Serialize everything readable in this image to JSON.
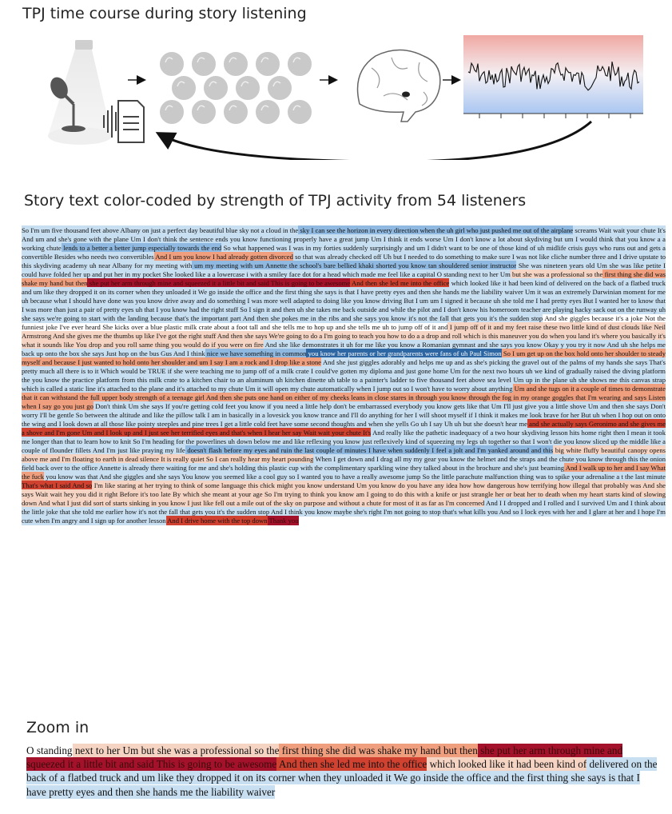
{
  "titles": {
    "pipeline": "TPJ time course during story listening",
    "story": "Story text color-coded by strength of TPJ activity from 54 listeners",
    "zoom": "Zoom in"
  },
  "colors": {
    "strong_negative": "#2c66a3",
    "negative": "#8fb9e0",
    "weak_negative": "#c8dff1",
    "neutral": "#ffffff",
    "weak_positive": "#f6d4c3",
    "positive": "#ef9e7e",
    "strong_positive": "#d0412f",
    "peak_positive": "#a3122a",
    "timecourse_line": "#111111"
  },
  "pipeline_icons": [
    "spotlight-icon",
    "microphone-icon",
    "audio-document-icon",
    "audience-icon",
    "brain-icon",
    "timecourse-plot-icon",
    "feedback-arrow-icon"
  ],
  "story_segments": [
    {
      "t": "So I'm um five thousand feet above Albany on just a perfect day beautiful blue sky not a cloud in the",
      "s": -1
    },
    {
      "t": " sky I can see the horizon in every direction when the uh girl who just pushed me out of the airplane",
      "s": -2
    },
    {
      "t": " screams Wait wait your chute It's And um and she's gone with the plane Um I don't think the sentence ends you know functioning properly have a great jump Um I think it ends worse Um I don't know a lot about skydiving but um I would think that you know a a working chute",
      "s": -1
    },
    {
      "t": " lends to a better a better jump especially towards the end",
      "s": -2
    },
    {
      "t": " So what happened was I was in my forties suddenly surprisingly and um I didn't want to be one of those kind of uh midlife crisis guys who runs out and gets a convertible Besides who needs two convertibles",
      "s": -1
    },
    {
      "t": " And I um you know I had already gotten divorced",
      "s": 2
    },
    {
      "t": " so that was already checked off Uh but I needed to do something to make sure I was not like cliche number three and I drive upstate to this skydiving academy uh near Albany for my meeting with",
      "s": -1
    },
    {
      "t": " um my meeting with um Annette the school's bare bellied khaki shorted you know tan shouldered senior instructor",
      "s": -2
    },
    {
      "t": " She was nineteen years old Um she was like petite I could have folded her up and put her in my pocket She looked like a a lowercase i with a smiley face dot for a head which made me feel like a capital O standing next to her Um",
      "s": -1
    },
    {
      "t": " but she was a professional so the",
      "s": 1
    },
    {
      "t": " first thing she did was shake my hand but then",
      "s": 2
    },
    {
      "t": " she put her arm through mine and squeezed it a little bit and said This is going to be awesome",
      "s": 4
    },
    {
      "t": " And then she led me into the office",
      "s": 3
    },
    {
      "t": " which looked like it had been kind of delivered on the back of a flatbed truck and um like they dropped it on its corner when they unloaded it We go inside the office and the first thing she says is that I have pretty eyes and then she hands me the liability waiver",
      "s": -1
    },
    {
      "t": " Um it was an extremely Darwinian moment for me uh because what I should have done was you know drive away and do something I was more well adapted to doing like you know driving But I um um I signed it because uh she told me I had pretty eyes But I wanted her to know that I was more than just a pair of pretty eyes uh that I you know had the right stuff So I sign it and then uh she takes me back outside and while the pilot and I don't know his homeroom teacher are playing hacky sack out on the runway uh she says we're going to start with the landing because that's the important part And then she pokes me in the ribs and she says you know it's not the fall that gets you it's the sudden stop",
      "s": -1
    },
    {
      "t": " And she giggles because it's a joke Not the funniest joke I've ever heard She kicks over a blue plastic milk crate about a foot tall and she tells me to hop up and she tells me uh to jump off of it and",
      "s": 0
    },
    {
      "t": " I jump off of it and my feet raise these two little kind of dust clouds like Neil Armstrong And she gives me the thumbs up like I've got the right stuff And then she says We're going to do a I'm going to teach you how to do a a drop and roll which is this maneuver you do when you land it's where you basically it's what it sounds like You drop and you roll same thing you would do if you were on fire",
      "s": 1
    },
    {
      "t": " And she like demonstrates it uh for me like you know a Romanian gymnast and she says you know Okay y you try it now And uh she helps me back up onto the box she says Just hop on the bus Gus And I think",
      "s": -1
    },
    {
      "t": " nice we have something in common",
      "s": -2
    },
    {
      "t": " you know her parents or her grandparents were fans of uh Paul Simon",
      "s": -3
    },
    {
      "t": " So I um get up on the box hold onto her shoulder to steady myself and because I just wanted to hold onto her shoulder and um I say I am a rock and I drop like a stone",
      "s": 2
    },
    {
      "t": " And she just giggles adorably and helps me up and as she's picking the gravel out of the palms of my hands she says That's pretty much all there is to it Which would be TRUE if she were teaching me to jump off of a milk crate I could've gotten my diploma and just gone home Um for the next two hours uh we kind of gradually raised the diving platform the you know the practice platform from this milk crate to a kitchen chair to an aluminum uh kitchen dinette uh table to a painter's ladder to five thousand feet above sea level Um up in the plane uh she shows me this canvas strap which is called a static line it's attached to the plane and it's attached to my chute Um it will open my chute automatically when I jump out so I won't have to worry about anything",
      "s": -1
    },
    {
      "t": " Um and she tugs on it a couple of times to demonstrate that it can withstand the full upper body strength of a teenage girl And then she puts one hand on either of my cheeks leans in close stares in through you know through the fog in my orange goggles that I'm wearing and says Listen when I say go you just go",
      "s": 2
    },
    {
      "t": " Don't think Um she says If you're getting cold feet you know if you need a little help don't be embarrassed everybody you know gets like that Um I'll just give you a little shove Um and then she says Don't worry I'll be gentle So between the altitude and like the pillow talk I am in basically in a lovesick you know trance and I'll do anything for her I will shoot myself if I think it makes me look brave for her But uh when I hop out on onto the wing and I look down at all those like pointy steeples and pine trees I get a little cold feet have some second thoughts and when she yells Go uh I say Uh uh but she doesn't hear me",
      "s": -1
    },
    {
      "t": " and she actually says Geronimo and she gives me a shove and I'm gone Um and I look up and I just see her terrified eyes and that's when I hear her say Wait wait your chute It's",
      "s": 3
    },
    {
      "t": " And really like the pathetic inadequacy of a two hour skydiving lesson hits home right then I mean it took me longer than that to learn how to knit So I'm heading for the powerlines uh down below me and like reflexing you know just reflexively kind of squeezing my legs uh together so that I won't die you know sliced up the middle like a couple of flounder fillets And I'm just like praying my life",
      "s": -1
    },
    {
      "t": " doesn't flash before my eyes and ruin the last couple of minutes I have when suddenly I feel a jolt and I'm yanked around and this",
      "s": -2
    },
    {
      "t": " big white fluffy beautiful canopy opens above me and I'm floating to earth in dead silence It is really quiet So I can really hear my heart pounding",
      "s": 1
    },
    {
      "t": " When I get down and I drag all my my gear you know the helmet and the straps and the chute you know through this the onion field back over to the office Annette is already there waiting for me and she's holding this plastic cup with the complimentary sparkling wine they talked about in the brochure and she's just beaming",
      "s": -1
    },
    {
      "t": " And I walk up to her and I say What the fuck",
      "s": 2
    },
    {
      "t": " you know was that And she giggles and she says You know you seemed like a cool guy so I wanted you to have a really awesome jump So the little parachute malfunction thing was to spike your adrenaline a t the last minute",
      "s": -1
    },
    {
      "t": " That's what I said And so",
      "s": 3
    },
    {
      "t": " I'm like staring at her trying to think of some language this chick might you know understand Um you know do you have any idea how how dangerous how terrifying how illegal that probably was And she says Wait wait hey you did it right Before it's too late By which she meant at your age So I'm trying to think you know am I going to do this with a knife or just strangle her or beat her to death when my heart starts kind of slowing down And what I just did sort of starts sinking in you know I just like fell out a mile out of the sky on purpose and without a chute for most of it as far as I'm concerned",
      "s": 1
    },
    {
      "t": " And I I dropped and I rolled and I survived Um and I think about the little joke that she told me earlier how it's not the fall that gets you it's the sudden stop And I think you know maybe she's right I'm not going to stop that's what kills you And so I lock eyes with her and I glare at her and I hope I'm cute when I'm angry and I sign up for another lesson",
      "s": -1
    },
    {
      "t": " And I drive home with the top down",
      "s": 3
    },
    {
      "t": " Thank you",
      "s": 4
    }
  ],
  "zoom_segments": [
    {
      "t": "O standing",
      "s": 0
    },
    {
      "t": " next to her Um",
      "s": 1
    },
    {
      "t": " but she was a professional so the",
      "s": 1
    },
    {
      "t": " first thing she did was shake my hand but then",
      "s": 2
    },
    {
      "t": " she put her arm through mine",
      "s": 4
    },
    {
      "t": " and squeezed it a little bit and said This is going to be awesome",
      "s": 4
    },
    {
      "t": " And then she led me into the office",
      "s": 3
    },
    {
      "t": " which looked like it had been kind of",
      "s": 1
    },
    {
      "t": " delivered on the back of a flatbed truck and um like they dropped it on its corner when they unloaded it We go inside the office and the first thing she says is that I have pretty eyes and then she hands me the liability waiver",
      "s": -1
    }
  ]
}
